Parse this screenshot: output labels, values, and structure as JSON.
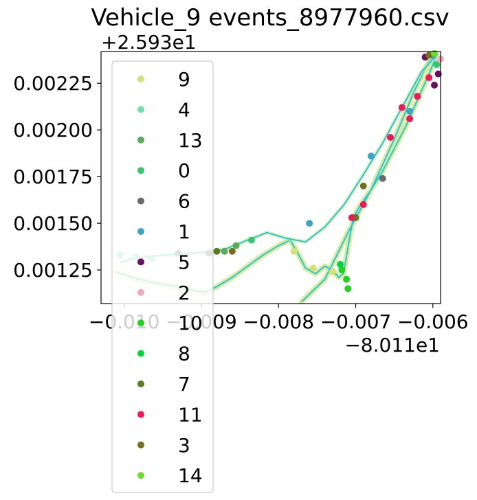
{
  "chart_data": {
    "type": "scatter",
    "title": "Vehicle_9 events_8977960.csv",
    "xlabel": "",
    "ylabel": "",
    "x_offset_label": "−8.011e1",
    "y_offset_label": "+2.593e1",
    "xlim": [
      -0.0103,
      -0.0059
    ],
    "ylim": [
      0.00107,
      0.00242
    ],
    "x_ticks": [
      -0.01,
      -0.009,
      -0.008,
      -0.007,
      -0.006
    ],
    "x_tick_labels": [
      "−0.010",
      "−0.009",
      "−0.008",
      "−0.007",
      "−0.006"
    ],
    "y_ticks": [
      0.00125,
      0.0015,
      0.00175,
      0.002,
      0.00225
    ],
    "y_tick_labels": [
      "0.00125",
      "0.00150",
      "0.00175",
      "0.00200",
      "0.00225"
    ],
    "grid": false,
    "legend_position": "left",
    "line_color": "#1ec8e6",
    "halo_color": "#d8e68a",
    "route": [
      [
        -0.0101,
        0.00124
      ],
      [
        -0.0099,
        0.00121
      ],
      [
        -0.0096,
        0.00118
      ],
      [
        -0.0093,
        0.00116
      ],
      [
        -0.0091,
        0.00114
      ],
      [
        -0.00895,
        0.00113
      ],
      [
        -0.0088,
        0.00116
      ],
      [
        -0.0086,
        0.00121
      ],
      [
        -0.0084,
        0.00127
      ],
      [
        -0.0082,
        0.00133
      ],
      [
        -0.008,
        0.00138
      ],
      [
        -0.00785,
        0.00141
      ],
      [
        -0.00775,
        0.00134
      ],
      [
        -0.00765,
        0.00126
      ],
      [
        -0.00752,
        0.00123
      ],
      [
        -0.0074,
        0.00127
      ],
      [
        -0.0073,
        0.00125
      ],
      [
        -0.00722,
        0.00121
      ],
      [
        -0.00716,
        0.00123
      ],
      [
        -0.00712,
        0.00132
      ],
      [
        -0.00708,
        0.00142
      ],
      [
        -0.00703,
        0.00153
      ],
      [
        -0.00695,
        0.00159
      ],
      [
        -0.0068,
        0.00168
      ],
      [
        -0.00665,
        0.00178
      ],
      [
        -0.0065,
        0.0019
      ],
      [
        -0.00635,
        0.00202
      ],
      [
        -0.0062,
        0.00216
      ],
      [
        -0.00605,
        0.0023
      ],
      [
        -0.00595,
        0.0024
      ],
      [
        -0.00605,
        0.00237
      ],
      [
        -0.00625,
        0.0022
      ],
      [
        -0.0065,
        0.00195
      ],
      [
        -0.0068,
        0.00168
      ],
      [
        -0.0071,
        0.00145
      ],
      [
        -0.0074,
        0.0012
      ],
      [
        -0.0077,
        0.00108
      ]
    ],
    "return_route": [
      [
        -0.00595,
        0.0024
      ],
      [
        -0.00615,
        0.00231
      ],
      [
        -0.0064,
        0.00212
      ],
      [
        -0.00665,
        0.00193
      ],
      [
        -0.0069,
        0.00176
      ],
      [
        -0.00715,
        0.0016
      ],
      [
        -0.0074,
        0.00148
      ],
      [
        -0.00765,
        0.0014
      ],
      [
        -0.0079,
        0.00142
      ],
      [
        -0.00815,
        0.00145
      ],
      [
        -0.0084,
        0.00141
      ],
      [
        -0.0087,
        0.00136
      ],
      [
        -0.0091,
        0.00134
      ],
      [
        -0.0095,
        0.00133
      ],
      [
        -0.0099,
        0.00131
      ],
      [
        -0.01005,
        0.00129
      ]
    ],
    "series": [
      {
        "name": "9",
        "color": "#d4e07a",
        "points": [
          [
            -0.0078,
            0.00135
          ],
          [
            -0.00755,
            0.00126
          ],
          [
            -0.0073,
            0.00124
          ]
        ]
      },
      {
        "name": "4",
        "color": "#6fe0b0",
        "points": [
          [
            -0.01005,
            0.00133
          ],
          [
            -0.00985,
            0.00132
          ],
          [
            -0.00965,
            0.00131
          ]
        ]
      },
      {
        "name": "13",
        "color": "#5aab5a",
        "points": [
          [
            -0.0087,
            0.00135
          ],
          [
            -0.00855,
            0.00138
          ]
        ]
      },
      {
        "name": "0",
        "color": "#36c76e",
        "points": [
          [
            -0.00835,
            0.00141
          ],
          [
            -0.007,
            0.00153
          ],
          [
            -0.00595,
            0.00235
          ]
        ]
      },
      {
        "name": "6",
        "color": "#6a6a6a",
        "points": [
          [
            -0.0089,
            0.00134
          ],
          [
            -0.0093,
            0.00134
          ],
          [
            -0.00665,
            0.00174
          ]
        ]
      },
      {
        "name": "1",
        "color": "#3aa6c4",
        "points": [
          [
            -0.0076,
            0.0015
          ],
          [
            -0.0068,
            0.00186
          ],
          [
            -0.0063,
            0.0021
          ],
          [
            -0.006,
            0.0024
          ]
        ]
      },
      {
        "name": "5",
        "color": "#6a0f5c",
        "points": [
          [
            -0.0061,
            0.00239
          ],
          [
            -0.00593,
            0.0023
          ],
          [
            -0.00598,
            0.00224
          ]
        ]
      },
      {
        "name": "2",
        "color": "#f2a7c0",
        "points": [
          [
            -0.0059,
            0.00238
          ]
        ]
      },
      {
        "name": "10",
        "color": "#1ed41e",
        "points": [
          [
            -0.00718,
            0.00125
          ],
          [
            -0.00712,
            0.0012
          ],
          [
            -0.0071,
            0.00115
          ]
        ]
      },
      {
        "name": "8",
        "color": "#00d83a",
        "points": [
          [
            -0.00703,
            0.00153
          ],
          [
            -0.0072,
            0.00128
          ]
        ]
      },
      {
        "name": "7",
        "color": "#5a7d1e",
        "points": [
          [
            -0.0088,
            0.00135
          ],
          [
            -0.007,
            0.00153
          ]
        ]
      },
      {
        "name": "11",
        "color": "#f0185a",
        "points": [
          [
            -0.00705,
            0.00153
          ],
          [
            -0.0069,
            0.0016
          ],
          [
            -0.0063,
            0.00206
          ],
          [
            -0.0062,
            0.00218
          ],
          [
            -0.00605,
            0.00228
          ],
          [
            -0.00655,
            0.00196
          ],
          [
            -0.0064,
            0.00212
          ]
        ]
      },
      {
        "name": "3",
        "color": "#76701e",
        "points": [
          [
            -0.0086,
            0.00135
          ],
          [
            -0.0069,
            0.0017
          ],
          [
            -0.00605,
            0.0024
          ]
        ]
      },
      {
        "name": "14",
        "color": "#6ae02a",
        "points": [
          [
            -0.00598,
            0.00241
          ]
        ]
      }
    ]
  }
}
